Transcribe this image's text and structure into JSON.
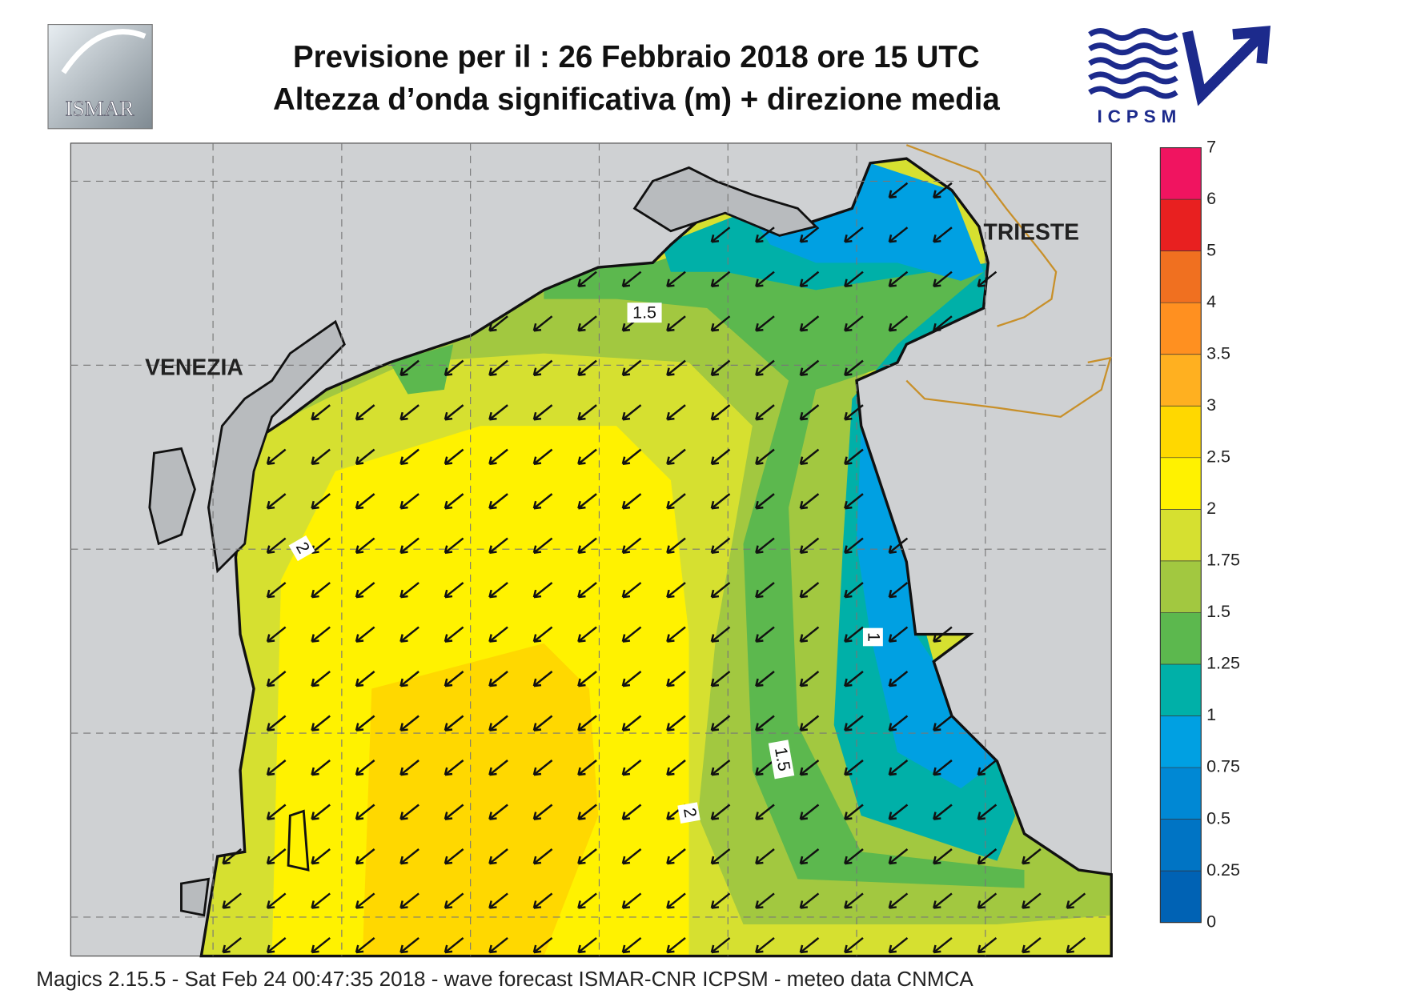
{
  "header": {
    "title_line1": "Previsione per il  :  26  Febbraio 2018   ore 15 UTC",
    "title_line2": "Altezza d’onda significativa (m) + direzione media"
  },
  "logos": {
    "left": "ISMAR",
    "right": "ICPSM"
  },
  "map": {
    "cities": [
      "VENEZIA",
      "TRIESTE"
    ],
    "contour_labels": [
      "1.5",
      "2",
      "1",
      "1.5",
      "2"
    ]
  },
  "colorbar": {
    "levels": [
      0,
      0.25,
      0.5,
      0.75,
      1,
      1.25,
      1.5,
      1.75,
      2,
      2.5,
      3,
      3.5,
      4,
      5,
      6,
      7
    ],
    "colors": [
      "#0062b4",
      "#0074c4",
      "#0088d4",
      "#00a0e2",
      "#00b0a8",
      "#5cb84e",
      "#a2c840",
      "#d6e030",
      "#fff200",
      "#ffd800",
      "#ffb020",
      "#ff9020",
      "#f07020",
      "#e82020",
      "#f01460"
    ]
  },
  "footer": "Magics 2.15.5 - Sat Feb 24 00:47:35 2018 - wave forecast  ISMAR-CNR  ICPSM - meteo data    CNMCA"
}
